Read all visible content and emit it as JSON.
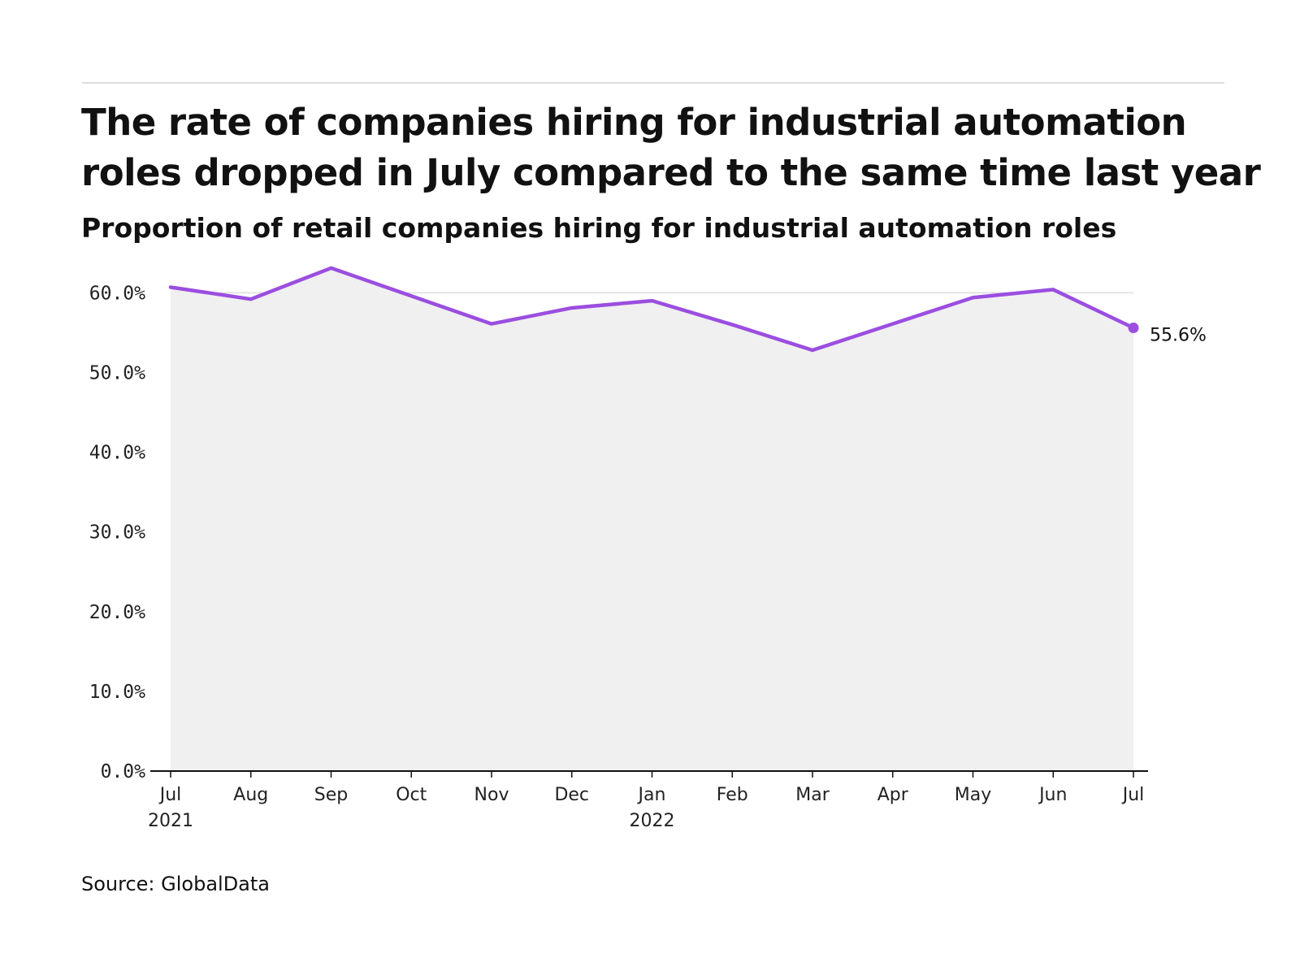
{
  "title": "The rate of companies hiring for industrial automation roles dropped in July compared to the same time last year",
  "subtitle": "Proportion of retail companies hiring for industrial automation roles",
  "source": "Source: GlobalData",
  "colors": {
    "line": "#9b4ee0",
    "area": "#f0f0f0",
    "grid": "#dddddd",
    "axis": "#111111"
  },
  "chart_data": {
    "type": "area",
    "x": [
      "Jul 2021",
      "Aug 2021",
      "Sep 2021",
      "Oct 2021",
      "Nov 2021",
      "Dec 2021",
      "Jan 2022",
      "Feb 2022",
      "Mar 2022",
      "Apr 2022",
      "May 2022",
      "Jun 2022",
      "Jul 2022"
    ],
    "x_tick_labels": [
      {
        "label": "Jul",
        "sublabel": "2021"
      },
      {
        "label": "Aug",
        "sublabel": ""
      },
      {
        "label": "Sep",
        "sublabel": ""
      },
      {
        "label": "Oct",
        "sublabel": ""
      },
      {
        "label": "Nov",
        "sublabel": ""
      },
      {
        "label": "Dec",
        "sublabel": ""
      },
      {
        "label": "Jan",
        "sublabel": "2022"
      },
      {
        "label": "Feb",
        "sublabel": ""
      },
      {
        "label": "Mar",
        "sublabel": ""
      },
      {
        "label": "Apr",
        "sublabel": ""
      },
      {
        "label": "May",
        "sublabel": ""
      },
      {
        "label": "Jun",
        "sublabel": ""
      },
      {
        "label": "Jul",
        "sublabel": ""
      }
    ],
    "values": [
      60.7,
      59.2,
      63.1,
      59.6,
      56.1,
      58.1,
      59.0,
      56.0,
      52.8,
      56.1,
      59.4,
      60.4,
      55.6
    ],
    "ylim": [
      0,
      63.5
    ],
    "y_ticks": [
      0,
      10,
      20,
      30,
      40,
      50,
      60
    ],
    "y_tick_labels": [
      "0.0%",
      "10.0%",
      "20.0%",
      "30.0%",
      "40.0%",
      "50.0%",
      "60.0%"
    ],
    "grid": true,
    "end_label": "55.6%",
    "xlabel": "",
    "ylabel": ""
  }
}
